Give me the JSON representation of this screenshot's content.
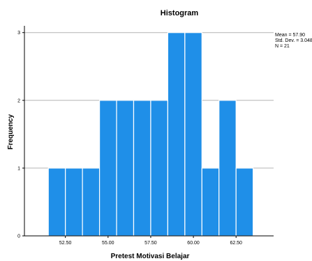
{
  "chart_data": {
    "type": "bar",
    "title": "Histogram",
    "xlabel": "Pretest Motivasi Belajar",
    "ylabel": "Frequency",
    "bin_width": 1,
    "bins": [
      {
        "start": 51.5,
        "end": 52.5,
        "count": 1
      },
      {
        "start": 52.5,
        "end": 53.5,
        "count": 1
      },
      {
        "start": 53.5,
        "end": 54.5,
        "count": 1
      },
      {
        "start": 54.5,
        "end": 55.5,
        "count": 2
      },
      {
        "start": 55.5,
        "end": 56.5,
        "count": 2
      },
      {
        "start": 56.5,
        "end": 57.5,
        "count": 2
      },
      {
        "start": 57.5,
        "end": 58.5,
        "count": 2
      },
      {
        "start": 58.5,
        "end": 59.5,
        "count": 3
      },
      {
        "start": 59.5,
        "end": 60.5,
        "count": 3
      },
      {
        "start": 60.5,
        "end": 61.5,
        "count": 1
      },
      {
        "start": 61.5,
        "end": 62.5,
        "count": 2
      },
      {
        "start": 62.5,
        "end": 63.5,
        "count": 1
      }
    ],
    "xlim": [
      50.1,
      64.7
    ],
    "ylim": [
      0,
      3.1
    ],
    "x_ticks": [
      52.5,
      55,
      57.5,
      60,
      62.5
    ],
    "x_tick_labels": [
      "52.50",
      "55.00",
      "57.50",
      "60.00",
      "62.50"
    ],
    "y_ticks": [
      0,
      1,
      2,
      3
    ],
    "y_tick_labels": [
      "0",
      "1",
      "2",
      "3"
    ],
    "grid": "horizontal",
    "bar_color": "#1f8fe8",
    "bar_edge_color": "#ffffff",
    "grid_color": "#b4b4b4",
    "legend": {
      "placement": "top-right",
      "lines": [
        "Mean = 57.90",
        "Std. Dev. = 3.048",
        "N = 21"
      ]
    }
  }
}
